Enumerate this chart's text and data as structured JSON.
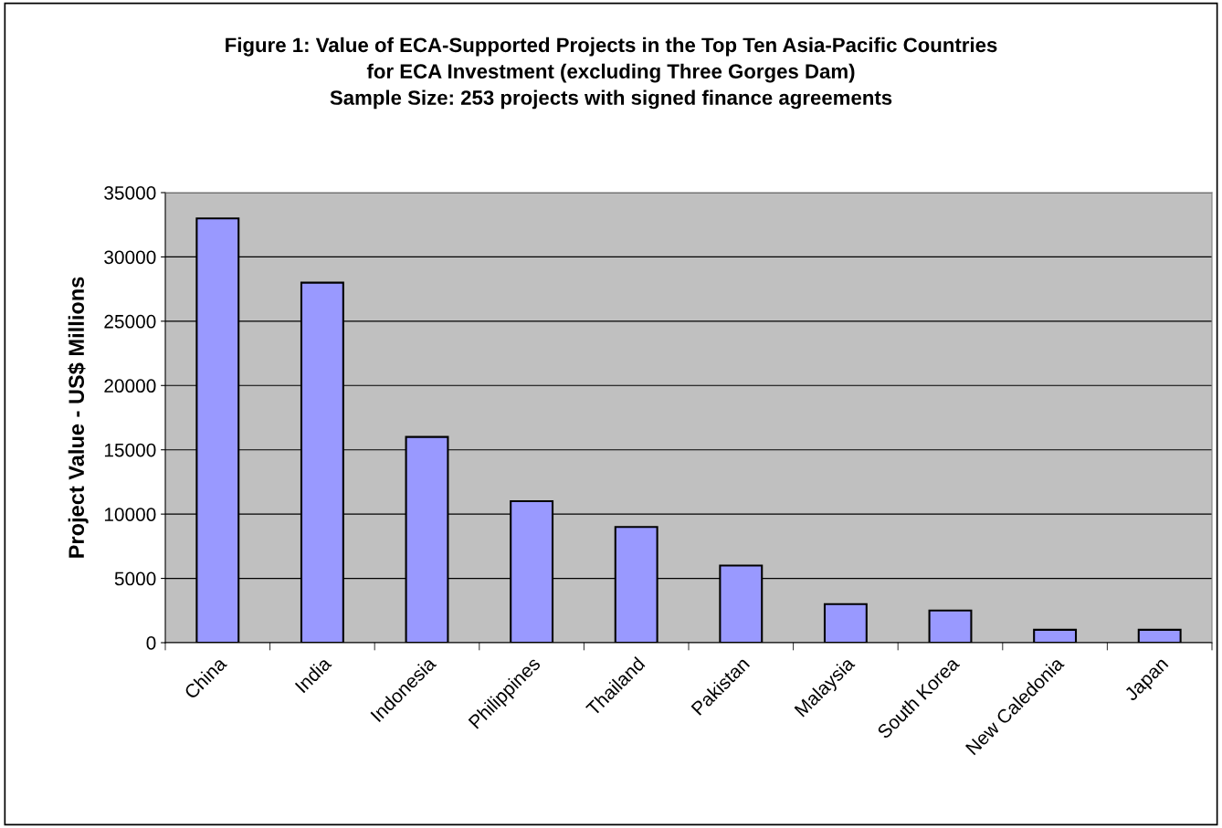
{
  "chart_data": {
    "type": "bar",
    "title": "Figure 1: Value of ECA-Supported Projects in the Top Ten Asia-Pacific Countries\nfor ECA Investment (excluding Three Gorges Dam)\nSample Size: 253 projects with signed finance agreements",
    "ylabel": "Project Value - US$ Millions",
    "categories": [
      "China",
      "India",
      "Indonesia",
      "Philippines",
      "Thailand",
      "Pakistan",
      "Malaysia",
      "South Korea",
      "New Caledonia",
      "Japan"
    ],
    "values": [
      33000,
      28000,
      16000,
      11000,
      9000,
      6000,
      3000,
      2500,
      1000,
      1000
    ],
    "color": "#9999ff",
    "ylim": [
      0,
      35000
    ],
    "yticks": [
      0,
      5000,
      10000,
      15000,
      20000,
      25000,
      30000,
      35000
    ],
    "grid": "y",
    "legend": false
  }
}
